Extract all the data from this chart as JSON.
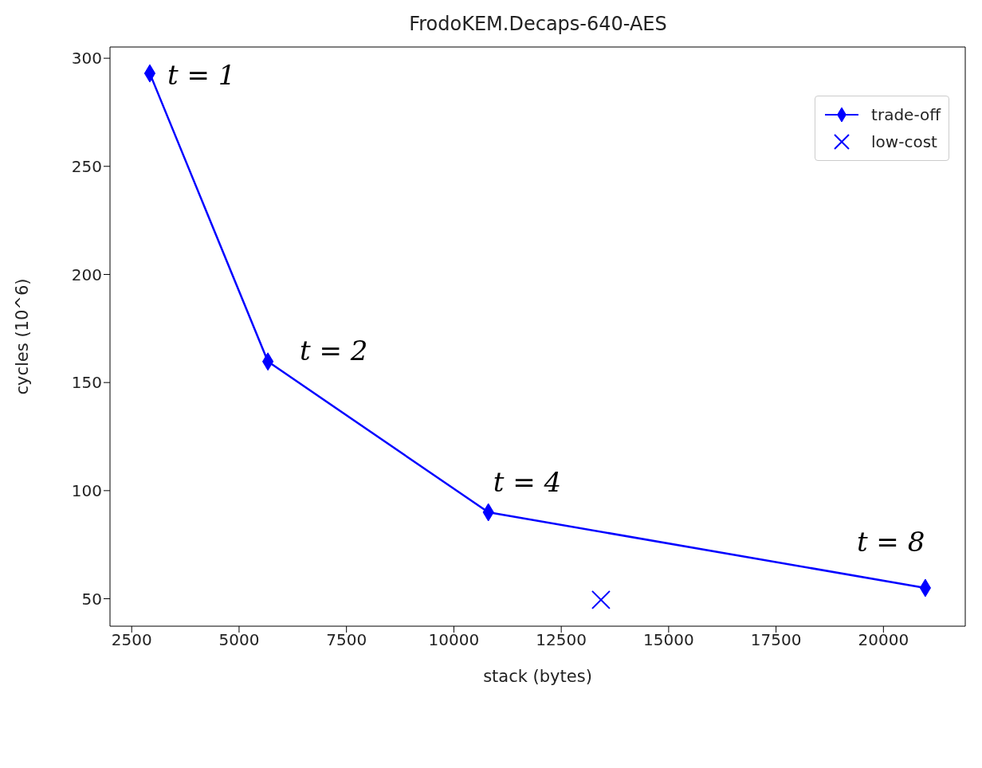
{
  "chart_data": {
    "type": "line",
    "title": "FrodoKEM.Decaps-640-AES",
    "xlabel": "stack (bytes)",
    "ylabel": "cycles (10^6)",
    "xlim": [
      1995,
      21905
    ],
    "ylim": [
      37.3,
      305.2
    ],
    "xticks": [
      2500,
      5000,
      7500,
      10000,
      12500,
      15000,
      17500,
      20000
    ],
    "yticks": [
      50,
      100,
      150,
      200,
      250,
      300
    ],
    "series": [
      {
        "name": "trade-off",
        "marker": "diamond",
        "color": "#0000ff",
        "x": [
          2922,
          5671,
          10803,
          20975
        ],
        "values": [
          293,
          159.7,
          90,
          55
        ]
      },
      {
        "name": "low-cost",
        "type": "scatter",
        "marker": "cross",
        "color": "#0000ff",
        "x": [
          13424
        ],
        "values": [
          49.5
        ]
      }
    ],
    "annotations": [
      {
        "text": "t = 1",
        "x": 2922,
        "y": 293
      },
      {
        "text": "t = 2",
        "x": 5671,
        "y": 159.7
      },
      {
        "text": "t = 4",
        "x": 10803,
        "y": 90
      },
      {
        "text": "t = 8",
        "x": 20975,
        "y": 55
      }
    ],
    "legend": "top right",
    "grid": false
  }
}
